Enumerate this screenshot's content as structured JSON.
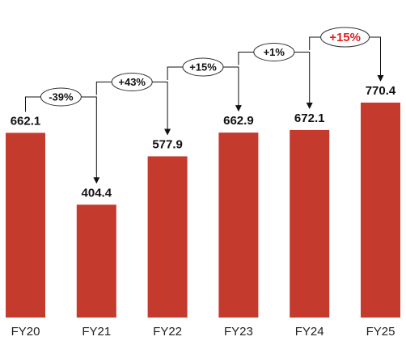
{
  "chart_data": {
    "type": "bar",
    "categories": [
      "FY20",
      "FY21",
      "FY22",
      "FY23",
      "FY24",
      "FY25"
    ],
    "values": [
      662.1,
      404.4,
      577.9,
      662.9,
      672.1,
      770.4
    ],
    "color": "#c43a2c",
    "annotations": [
      {
        "text": "-39%",
        "color": "#111111"
      },
      {
        "text": "+43%",
        "color": "#111111"
      },
      {
        "text": "+15%",
        "color": "#111111"
      },
      {
        "text": "+1%",
        "color": "#111111"
      },
      {
        "text": "+15%",
        "color": "#e02020"
      }
    ]
  }
}
